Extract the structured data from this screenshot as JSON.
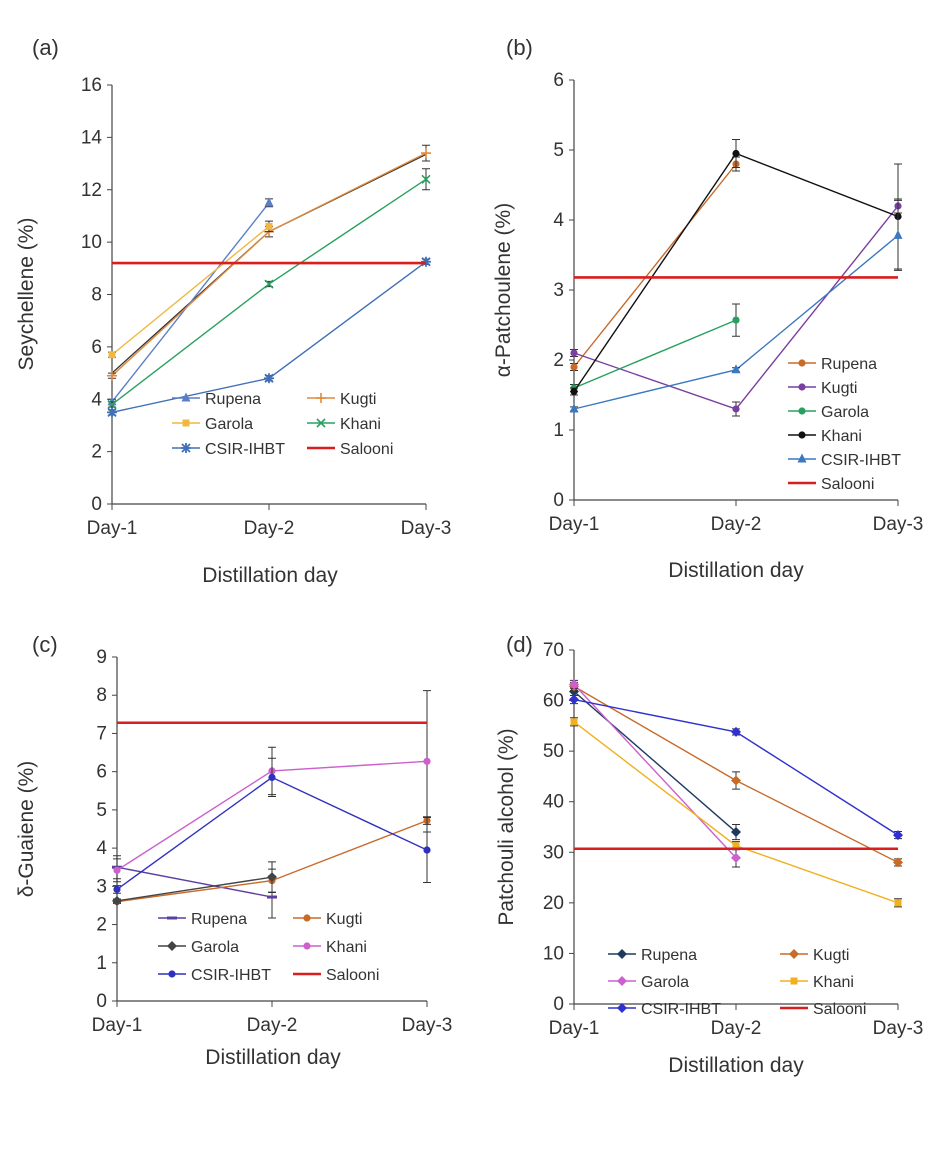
{
  "colors": {
    "Rupena_a": "#5b7fc7",
    "Kugti_a": "#e08a3c",
    "Garola_a": "#f0b840",
    "Khani_a": "#2aa060",
    "CSIR_a": "#4070b8",
    "Salooni": "#d81e1e",
    "Rupena_b": "#c86a28",
    "Kugti_b": "#7a3fa0",
    "Garola_b": "#2aa060",
    "Khani_b": "#111111",
    "CSIR_b": "#3a78c0",
    "Rupena_c": "#5b3fa0",
    "Kugti_c": "#c86a28",
    "Garola_c": "#444444",
    "Khani_c": "#cc60cc",
    "CSIR_c": "#3030c0",
    "Rupena_d": "#1f3a5f",
    "Kugti_d": "#c86a28",
    "Garola_d": "#cc60cc",
    "Khani_d": "#f0b020",
    "CSIR_d": "#3030d0"
  },
  "chart_data": [
    {
      "panel_label": "(a)",
      "type": "line",
      "categories": [
        "Day-1",
        "Day-2",
        "Day-3"
      ],
      "xlabel": "Distillation day",
      "ylabel": "Seychellene (%)",
      "ylim": [
        0,
        16
      ],
      "yticks": [
        0,
        2,
        4,
        6,
        8,
        10,
        12,
        14,
        16
      ],
      "legend_columns": 2,
      "legend_placement": "bottom-center",
      "series": [
        {
          "name": "Rupena",
          "values": [
            3.9,
            11.5,
            null
          ],
          "errors": [
            0.1,
            0.15,
            null
          ],
          "color_key": "Rupena_a",
          "marker": "triangle"
        },
        {
          "name": "Kugti",
          "values": [
            4.9,
            10.4,
            13.4
          ],
          "errors": [
            0.1,
            0.2,
            0.3
          ],
          "color_key": "Kugti_a",
          "marker": "plus"
        },
        {
          "name": "Garola",
          "values": [
            5.7,
            10.6,
            null
          ],
          "errors": [
            0.1,
            0.2,
            null
          ],
          "color_key": "Garola_a",
          "marker": "square"
        },
        {
          "name": "Khani",
          "values": [
            3.8,
            8.4,
            12.4
          ],
          "errors": [
            0.1,
            0.1,
            0.4
          ],
          "color_key": "Khani_a",
          "marker": "cross"
        },
        {
          "name": "CSIR-IHBT",
          "values": [
            3.5,
            4.8,
            9.25
          ],
          "errors": [
            0.1,
            0.1,
            0.1
          ],
          "color_key": "CSIR_a",
          "marker": "star"
        },
        {
          "name": "Salooni",
          "values": [
            9.2,
            9.2,
            9.2
          ],
          "color_key": "Salooni",
          "marker": "none",
          "reference": true
        }
      ],
      "extra_lines": [
        {
          "values": [
            5.0,
            10.4,
            13.35
          ],
          "color": "#333333"
        }
      ]
    },
    {
      "panel_label": "(b)",
      "type": "line",
      "categories": [
        "Day-1",
        "Day-2",
        "Day-3"
      ],
      "xlabel": "Distillation day",
      "ylabel": "α-Patchoulene (%)",
      "ylim": [
        0,
        6
      ],
      "yticks": [
        0,
        1,
        2,
        3,
        4,
        5,
        6
      ],
      "legend_columns": 1,
      "legend_placement": "right",
      "series": [
        {
          "name": "Rupena",
          "values": [
            1.9,
            4.8,
            null
          ],
          "errors": [
            0.05,
            0.1,
            null
          ],
          "color_key": "Rupena_b",
          "marker": "circle"
        },
        {
          "name": "Kugti",
          "values": [
            2.1,
            1.3,
            4.2
          ],
          "errors": [
            0.05,
            0.1,
            0.1
          ],
          "color_key": "Kugti_b",
          "marker": "circle"
        },
        {
          "name": "Garola",
          "values": [
            1.6,
            2.57,
            null
          ],
          "errors": [
            0.05,
            0.23,
            null
          ],
          "color_key": "Garola_b",
          "marker": "circle"
        },
        {
          "name": "Khani",
          "values": [
            1.55,
            4.95,
            4.05
          ],
          "errors": [
            0.05,
            0.2,
            0.75
          ],
          "color_key": "Khani_b",
          "marker": "circle"
        },
        {
          "name": "CSIR-IHBT",
          "values": [
            1.3,
            1.86,
            3.78
          ],
          "errors": [
            0.03,
            0.03,
            0.5
          ],
          "color_key": "CSIR_b",
          "marker": "triangle"
        },
        {
          "name": "Salooni",
          "values": [
            3.18,
            3.18,
            3.18
          ],
          "color_key": "Salooni",
          "marker": "none",
          "reference": true
        }
      ]
    },
    {
      "panel_label": "(c)",
      "type": "line",
      "categories": [
        "Day-1",
        "Day-2",
        "Day-3"
      ],
      "xlabel": "Distillation day",
      "ylabel": "δ-Guaiene (%)",
      "ylim": [
        0,
        9
      ],
      "yticks": [
        0,
        1,
        2,
        3,
        4,
        5,
        6,
        7,
        8,
        9
      ],
      "legend_columns": 2,
      "legend_placement": "bottom-center",
      "series": [
        {
          "name": "Rupena",
          "values": [
            3.5,
            2.72,
            null
          ],
          "errors": [
            0.3,
            0.55,
            null
          ],
          "color_key": "Rupena_c",
          "marker": "dash"
        },
        {
          "name": "Kugti",
          "values": [
            2.6,
            3.15,
            4.72
          ],
          "errors": [
            0.05,
            0.3,
            0.1
          ],
          "color_key": "Kugti_c",
          "marker": "circle"
        },
        {
          "name": "Garola",
          "values": [
            2.62,
            3.24,
            null
          ],
          "errors": [
            0.05,
            0.4,
            null
          ],
          "color_key": "Garola_c",
          "marker": "diamond"
        },
        {
          "name": "Khani",
          "values": [
            3.42,
            6.02,
            6.27
          ],
          "errors": [
            0.3,
            0.62,
            1.85
          ],
          "color_key": "Khani_c",
          "marker": "circle"
        },
        {
          "name": "CSIR-IHBT",
          "values": [
            2.92,
            5.85,
            3.95
          ],
          "errors": [
            0.1,
            0.5,
            0.85
          ],
          "color_key": "CSIR_c",
          "marker": "circle"
        },
        {
          "name": "Salooni",
          "values": [
            7.28,
            7.28,
            7.28
          ],
          "color_key": "Salooni",
          "marker": "none",
          "reference": true
        }
      ]
    },
    {
      "panel_label": "(d)",
      "type": "line",
      "categories": [
        "Day-1",
        "Day-2",
        "Day-3"
      ],
      "xlabel": "Distillation day",
      "ylabel": "Patchouli alcohol (%)",
      "ylim": [
        0,
        70
      ],
      "yticks": [
        0,
        10,
        20,
        30,
        40,
        50,
        60,
        70
      ],
      "legend_columns": 2,
      "legend_placement": "bottom-center",
      "series": [
        {
          "name": "Rupena",
          "values": [
            61.8,
            34.0,
            null
          ],
          "errors": [
            0.8,
            1.5,
            null
          ],
          "color_key": "Rupena_d",
          "marker": "diamond"
        },
        {
          "name": "Kugti",
          "values": [
            62.8,
            44.2,
            28.0
          ],
          "errors": [
            0.8,
            1.7,
            0.7
          ],
          "color_key": "Kugti_d",
          "marker": "diamond"
        },
        {
          "name": "Garola",
          "values": [
            63.2,
            28.9,
            null
          ],
          "errors": [
            0.8,
            1.8,
            null
          ],
          "color_key": "Garola_d",
          "marker": "diamond"
        },
        {
          "name": "Khani",
          "values": [
            55.8,
            31.3,
            20.0
          ],
          "errors": [
            0.8,
            0.8,
            0.8
          ],
          "color_key": "Khani_d",
          "marker": "square"
        },
        {
          "name": "CSIR-IHBT",
          "values": [
            60.2,
            53.8,
            33.4
          ],
          "errors": [
            0.8,
            0.6,
            0.7
          ],
          "color_key": "CSIR_d",
          "marker": "diamond"
        },
        {
          "name": "Salooni",
          "values": [
            30.7,
            30.7,
            30.7
          ],
          "color_key": "Salooni",
          "marker": "none",
          "reference": true
        }
      ]
    }
  ]
}
